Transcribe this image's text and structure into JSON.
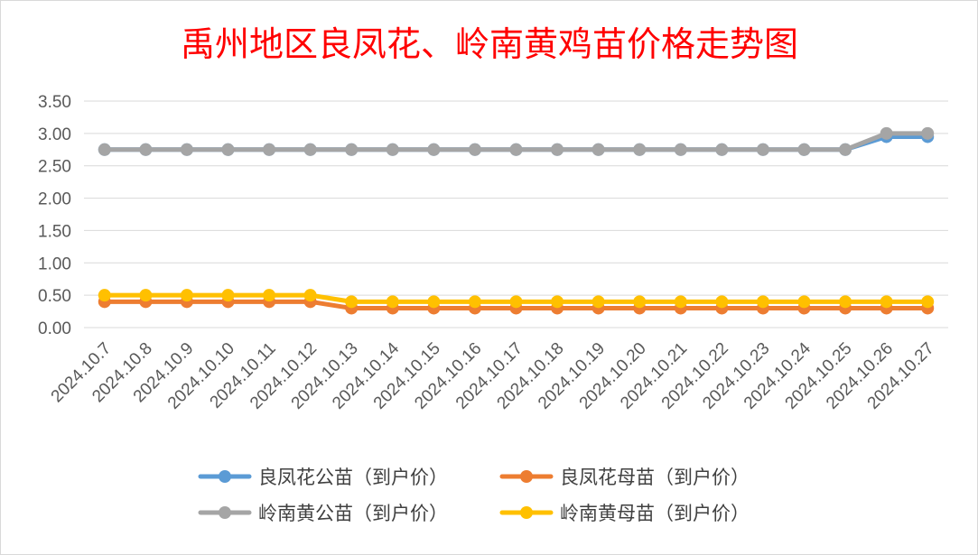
{
  "chart_data": {
    "type": "line",
    "title": "禹州地区良凤花、岭南黄鸡苗价格走势图",
    "xlabel": "",
    "ylabel": "",
    "categories": [
      "2024.10.7",
      "2024.10.8",
      "2024.10.9",
      "2024.10.10",
      "2024.10.11",
      "2024.10.12",
      "2024.10.13",
      "2024.10.14",
      "2024.10.15",
      "2024.10.16",
      "2024.10.17",
      "2024.10.18",
      "2024.10.19",
      "2024.10.20",
      "2024.10.21",
      "2024.10.22",
      "2024.10.23",
      "2024.10.24",
      "2024.10.25",
      "2024.10.26",
      "2024.10.27"
    ],
    "yticks": [
      "0.00",
      "0.50",
      "1.00",
      "1.50",
      "2.00",
      "2.50",
      "3.00",
      "3.50"
    ],
    "ylim": [
      0,
      3.5
    ],
    "grid": true,
    "legend_position": "bottom",
    "series": [
      {
        "name": "良凤花公苗（到户价）",
        "color": "#5b9bd5",
        "values": [
          2.75,
          2.75,
          2.75,
          2.75,
          2.75,
          2.75,
          2.75,
          2.75,
          2.75,
          2.75,
          2.75,
          2.75,
          2.75,
          2.75,
          2.75,
          2.75,
          2.75,
          2.75,
          2.75,
          2.95,
          2.95
        ]
      },
      {
        "name": "良凤花母苗（到户价）",
        "color": "#ed7d31",
        "values": [
          0.4,
          0.4,
          0.4,
          0.4,
          0.4,
          0.4,
          0.3,
          0.3,
          0.3,
          0.3,
          0.3,
          0.3,
          0.3,
          0.3,
          0.3,
          0.3,
          0.3,
          0.3,
          0.3,
          0.3,
          0.3
        ]
      },
      {
        "name": "岭南黄公苗（到户价）",
        "color": "#a5a5a5",
        "values": [
          2.75,
          2.75,
          2.75,
          2.75,
          2.75,
          2.75,
          2.75,
          2.75,
          2.75,
          2.75,
          2.75,
          2.75,
          2.75,
          2.75,
          2.75,
          2.75,
          2.75,
          2.75,
          2.75,
          3.0,
          3.0
        ]
      },
      {
        "name": "岭南黄母苗（到户价）",
        "color": "#ffc000",
        "values": [
          0.5,
          0.5,
          0.5,
          0.5,
          0.5,
          0.5,
          0.4,
          0.4,
          0.4,
          0.4,
          0.4,
          0.4,
          0.4,
          0.4,
          0.4,
          0.4,
          0.4,
          0.4,
          0.4,
          0.4,
          0.4
        ]
      }
    ]
  }
}
